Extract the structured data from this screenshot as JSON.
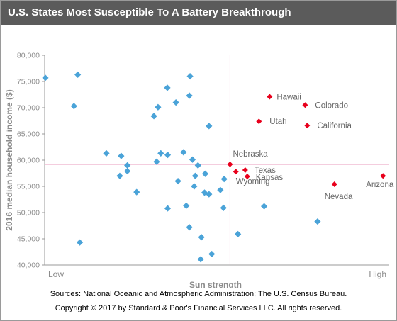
{
  "title": "U.S. States Most Susceptible To A Battery Breakthrough",
  "footer": {
    "sources": "Sources: National Oceanic and Atmospheric Administration; The U.S.  Census Bureau.",
    "copyright": "Copyright © 2017 by Standard & Poor's Financial Services LLC. All rights reserved."
  },
  "colors": {
    "blue": "#4aa3d8",
    "red": "#e8001c",
    "refline": "#e37aa6",
    "axis": "#9a9a9a"
  },
  "chart_data": {
    "type": "scatter",
    "xlabel": "Sun strength",
    "ylabel": "2016 median household income ($)",
    "xlim": [
      0,
      100
    ],
    "ylim": [
      40000,
      80000
    ],
    "yticks": [
      40000,
      45000,
      50000,
      55000,
      60000,
      65000,
      70000,
      75000,
      80000
    ],
    "ytick_labels": [
      "40,000",
      "45,000",
      "50,000",
      "55,000",
      "60,000",
      "65,000",
      "70,000",
      "75,000",
      "80,000"
    ],
    "xtick_labels": {
      "low": "Low",
      "high": "High"
    },
    "reference_lines": {
      "x": 53.8,
      "y": 59200
    },
    "grid": false,
    "series": [
      {
        "points": [
          [
            0.2,
            75700
          ],
          [
            9.6,
            76300
          ],
          [
            8.5,
            70300
          ],
          [
            10.2,
            44300
          ],
          [
            17.9,
            61300
          ],
          [
            22.2,
            60800
          ],
          [
            21.8,
            57000
          ],
          [
            24.0,
            59000
          ],
          [
            24.0,
            57900
          ],
          [
            26.7,
            53900
          ],
          [
            31.7,
            68400
          ],
          [
            32.9,
            70100
          ],
          [
            32.5,
            59700
          ],
          [
            33.7,
            61300
          ],
          [
            35.7,
            61000
          ],
          [
            35.7,
            50800
          ],
          [
            35.6,
            73800
          ],
          [
            38.1,
            71000
          ],
          [
            38.7,
            56000
          ],
          [
            40.3,
            61500
          ],
          [
            41.1,
            51300
          ],
          [
            42.2,
            76000
          ],
          [
            42.0,
            72300
          ],
          [
            42.0,
            47200
          ],
          [
            42.9,
            60100
          ],
          [
            43.4,
            55000
          ],
          [
            43.7,
            57000
          ],
          [
            44.5,
            59000
          ],
          [
            45.5,
            45300
          ],
          [
            45.3,
            41100
          ],
          [
            46.4,
            53800
          ],
          [
            46.6,
            57400
          ],
          [
            47.7,
            66500
          ],
          [
            47.7,
            53500
          ],
          [
            48.5,
            42100
          ],
          [
            51.0,
            54300
          ],
          [
            52.1,
            56400
          ],
          [
            51.9,
            50900
          ],
          [
            56.1,
            45900
          ],
          [
            63.7,
            51200
          ],
          [
            79.2,
            48300
          ]
        ]
      },
      {
        "points": [
          [
            53.8,
            59200
          ],
          [
            55.5,
            57800
          ],
          [
            58.2,
            58100
          ],
          [
            58.8,
            56900
          ],
          [
            62.2,
            67400
          ],
          [
            65.3,
            72100
          ],
          [
            75.6,
            70500
          ],
          [
            76.2,
            66600
          ],
          [
            84.1,
            55400
          ],
          [
            98.2,
            57000
          ]
        ]
      }
    ],
    "labels": [
      {
        "text": "Hawaii",
        "x": 65.3,
        "y": 72100
      },
      {
        "text": "Colorado",
        "x": 75.6,
        "y": 70500
      },
      {
        "text": "Utah",
        "x": 62.2,
        "y": 67400
      },
      {
        "text": "California",
        "x": 76.2,
        "y": 66600
      },
      {
        "text": "Nebraska",
        "x": 53.8,
        "y": 59200
      },
      {
        "text": "Texas",
        "x": 58.2,
        "y": 58100
      },
      {
        "text": "Kansas",
        "x": 58.8,
        "y": 56900
      },
      {
        "text": "Wyoming",
        "x": 55.5,
        "y": 57800
      },
      {
        "text": "Nevada",
        "x": 84.1,
        "y": 55400
      },
      {
        "text": "Arizona",
        "x": 98.2,
        "y": 57000
      }
    ]
  }
}
